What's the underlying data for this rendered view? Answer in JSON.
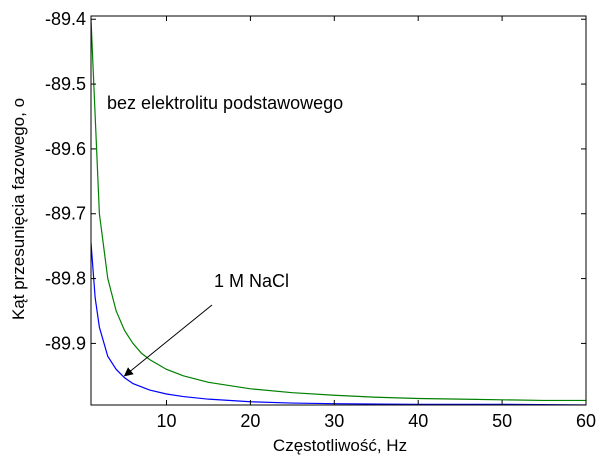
{
  "chart_data": {
    "type": "line",
    "title": "",
    "xlabel": "Częstotliwość, Hz",
    "ylabel": "Kąt przesunięcia fazowego, o",
    "xlim": [
      1,
      60
    ],
    "ylim": [
      -89.995,
      -89.395
    ],
    "x_ticks": [
      10,
      20,
      30,
      40,
      50,
      60
    ],
    "x_tick_labels": [
      "10",
      "20",
      "30",
      "40",
      "50",
      "60"
    ],
    "y_ticks": [
      -89.9,
      -89.8,
      -89.7,
      -89.6,
      -89.5,
      -89.4
    ],
    "y_tick_labels": [
      "-89.9",
      "-89.8",
      "-89.7",
      "-89.6",
      "-89.5",
      "-89.4"
    ],
    "grid": false,
    "series": [
      {
        "color": "#008000",
        "x": [
          1,
          2,
          3,
          4,
          5,
          6,
          7,
          8,
          10,
          12,
          15,
          20,
          25,
          30,
          35,
          40,
          45,
          50,
          55,
          60
        ],
        "y": [
          -89.4,
          -89.7,
          -89.8,
          -89.85,
          -89.88,
          -89.9,
          -89.915,
          -89.925,
          -89.94,
          -89.95,
          -89.96,
          -89.97,
          -89.976,
          -89.98,
          -89.983,
          -89.985,
          -89.986,
          -89.987,
          -89.988,
          -89.988
        ]
      },
      {
        "color": "#0000ff",
        "x": [
          1,
          1.5,
          2,
          3,
          4,
          5,
          6,
          7,
          8,
          10,
          12,
          15,
          20,
          25,
          30,
          40,
          50,
          60
        ],
        "y": [
          -89.745,
          -89.83,
          -89.875,
          -89.92,
          -89.94,
          -89.953,
          -89.962,
          -89.967,
          -89.972,
          -89.978,
          -89.982,
          -89.986,
          -89.99,
          -89.992,
          -89.993,
          -89.994,
          -89.994,
          -89.995
        ]
      }
    ],
    "annotations": [
      {
        "text": "bez elektrolitu podstawowego"
      },
      {
        "text": "1 M NaCl",
        "arrow_to": [
          5,
          -89.95
        ]
      }
    ]
  }
}
